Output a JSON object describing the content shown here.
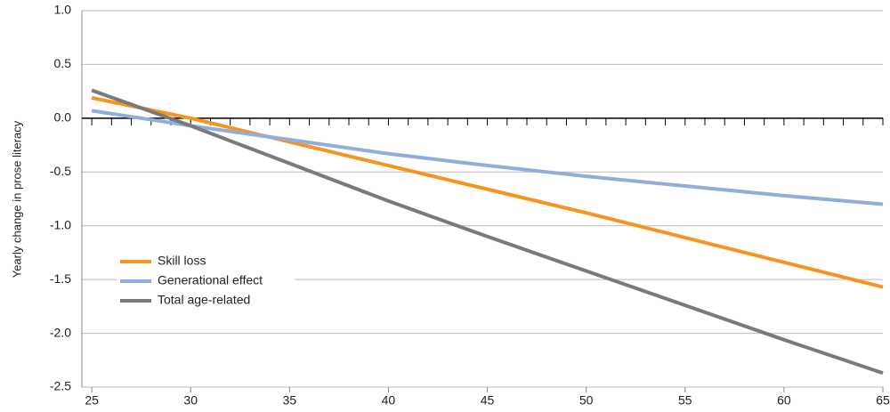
{
  "chart_data": {
    "type": "line",
    "y_label": "Yearly change in prose literacy",
    "x": [
      25,
      30,
      35,
      40,
      45,
      50,
      55,
      60,
      65
    ],
    "series": [
      {
        "name": "Skill loss",
        "color": "#f7941d",
        "values": [
          0.19,
          0.0,
          -0.22,
          -0.44,
          -0.66,
          -0.88,
          -1.11,
          -1.34,
          -1.57
        ]
      },
      {
        "name": "Generational effect",
        "color": "#8eaedb",
        "values": [
          0.07,
          -0.07,
          -0.2,
          -0.33,
          -0.44,
          -0.54,
          -0.63,
          -0.72,
          -0.8
        ]
      },
      {
        "name": "Total age-related",
        "color": "#7a7a7a",
        "values": [
          0.26,
          -0.07,
          -0.42,
          -0.77,
          -1.1,
          -1.42,
          -1.74,
          -2.06,
          -2.37
        ]
      }
    ],
    "xlim": [
      24.5,
      65
    ],
    "xticks": [
      25,
      30,
      35,
      40,
      45,
      50,
      55,
      60,
      65
    ],
    "xminorticks": [
      25,
      26,
      27,
      28,
      29,
      30,
      31,
      32,
      33,
      34,
      35,
      36,
      37,
      38,
      39,
      40,
      41,
      42,
      43,
      44,
      45,
      46,
      47,
      48,
      49,
      50,
      51,
      52,
      53,
      54,
      55,
      56,
      57,
      58,
      59,
      60,
      61,
      62,
      63,
      64,
      65
    ],
    "ylim": [
      -2.5,
      1.0
    ],
    "yticks": [
      {
        "value": 1.0,
        "label": "1.0"
      },
      {
        "value": 0.5,
        "label": "0.5"
      },
      {
        "value": 0.0,
        "label": "0.0"
      },
      {
        "value": -0.5,
        "label": "-0.5"
      },
      {
        "value": -1.0,
        "label": "-1.0"
      },
      {
        "value": -1.5,
        "label": "-1.5"
      },
      {
        "value": -2.0,
        "label": "-2.0"
      },
      {
        "value": -2.5,
        "label": "-2.5"
      }
    ],
    "grid": true,
    "legend": "lower left"
  }
}
